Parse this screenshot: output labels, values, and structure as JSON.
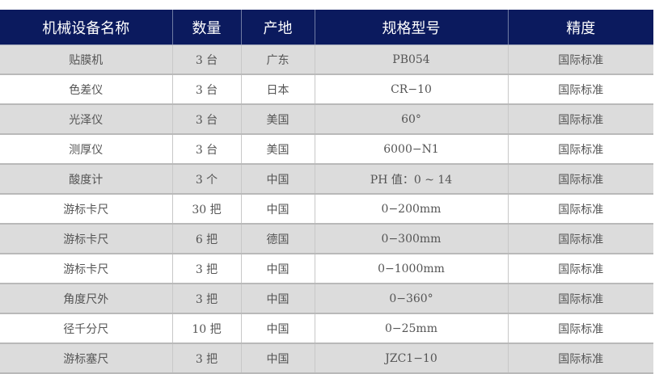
{
  "headers": [
    "机械设备名称",
    "数量",
    "产地",
    "规格型号",
    "精度"
  ],
  "rows": [
    [
      "贴膜机",
      "3 台",
      "广东",
      "PB054",
      "国际标准"
    ],
    [
      "色差仪",
      "3 台",
      "日本",
      "CR−10",
      "国际标准"
    ],
    [
      "光泽仪",
      "3 台",
      "美国",
      "60°",
      "国际标准"
    ],
    [
      "测厚仪",
      "3 台",
      "美国",
      "6000−N1",
      "国际标准"
    ],
    [
      "酸度计",
      "3 个",
      "中国",
      "PH 值：0 ~ 14",
      "国际标准"
    ],
    [
      "游标卡尺",
      "30 把",
      "中国",
      "0−200mm",
      "国际标准"
    ],
    [
      "游标卡尺",
      "6 把",
      "德国",
      "0−300mm",
      "国际标准"
    ],
    [
      "游标卡尺",
      "3 把",
      "中国",
      "0−1000mm",
      "国际标准"
    ],
    [
      "角度尺外",
      "3 把",
      "中国",
      "0−360°",
      "国际标准"
    ],
    [
      "径千分尺",
      "10 把",
      "中国",
      "0−25mm",
      "国际标准"
    ],
    [
      "游标塞尺",
      "3 把",
      "中国",
      "JZC1−10",
      "国际标准"
    ]
  ],
  "colors": {
    "header_bg": "#0b1a5e",
    "row_alt": "#dcdcdc"
  }
}
